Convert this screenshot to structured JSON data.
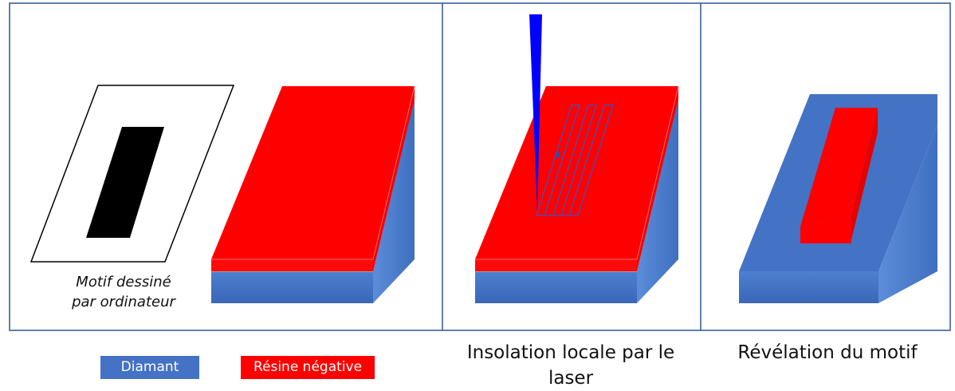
{
  "panel1": {
    "caption_line1": "Motif dessiné",
    "caption_line2": "par ordinateur"
  },
  "panel2": {
    "caption": "Insolation locale par le laser"
  },
  "panel3": {
    "caption": "Révélation du motif"
  },
  "legend": {
    "diamond_label": "Diamant",
    "resin_label": "Résine négative"
  },
  "colors": {
    "diamond": "#4472c4",
    "resin": "#ff0000",
    "laser": "#0000ff",
    "frame": "#2f5597"
  }
}
